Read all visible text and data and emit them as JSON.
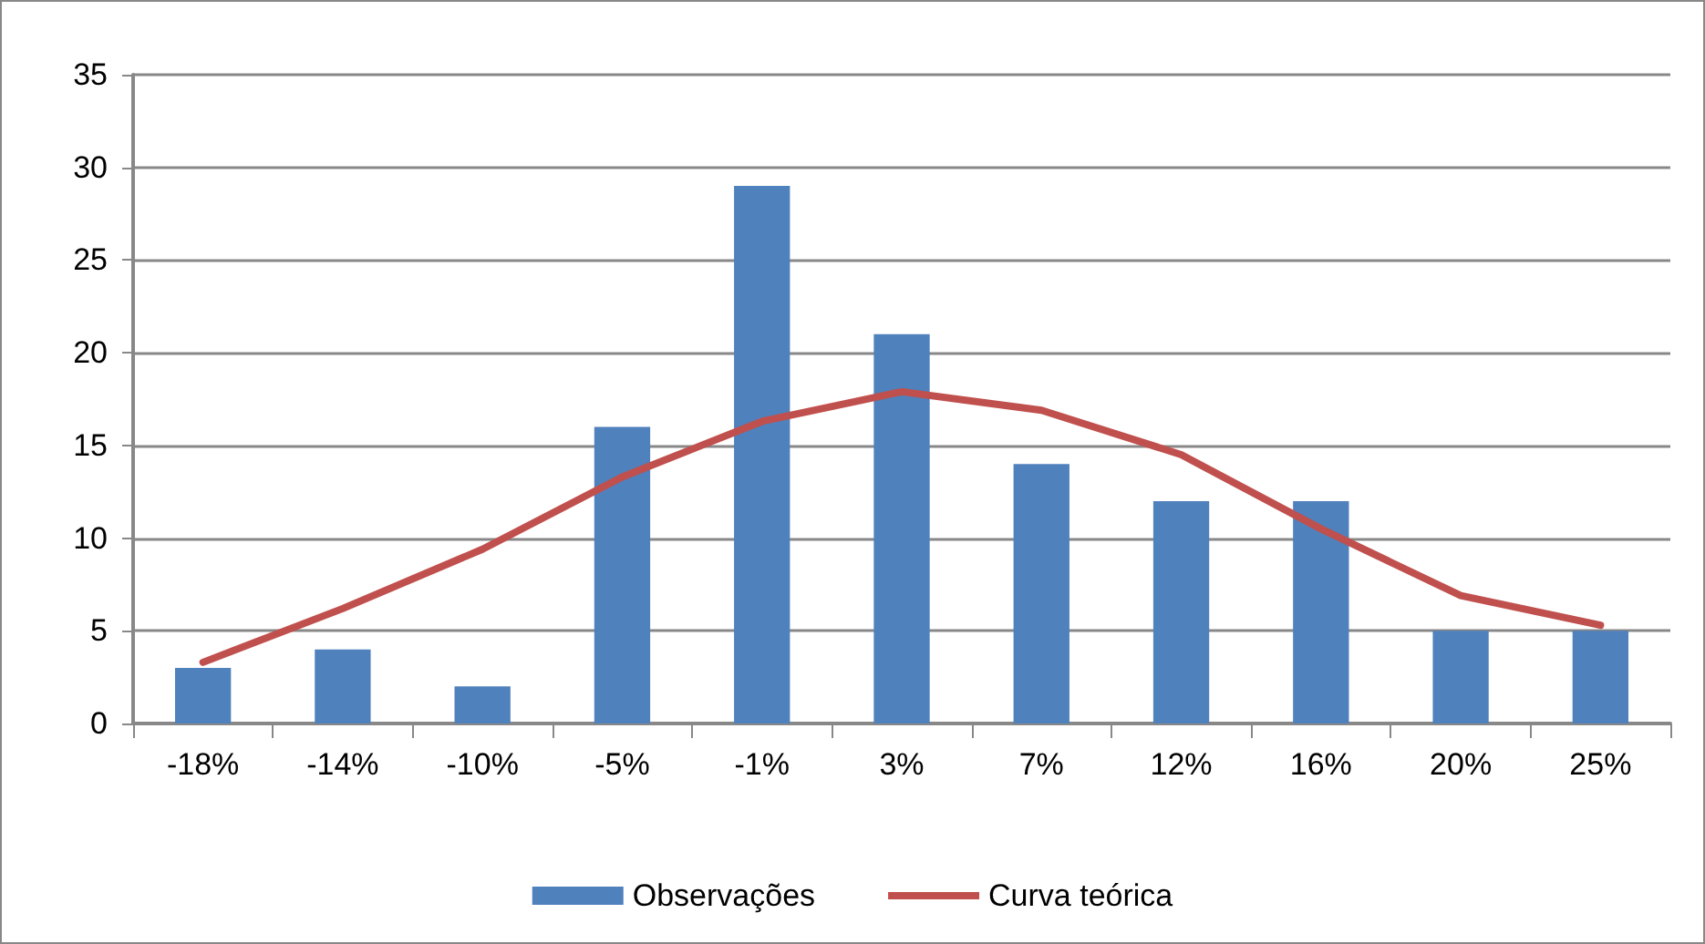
{
  "chart_data": {
    "type": "bar",
    "categories": [
      "-18%",
      "-14%",
      "-10%",
      "-5%",
      "-1%",
      "3%",
      "7%",
      "12%",
      "16%",
      "20%",
      "25%"
    ],
    "series": [
      {
        "name": "Observações",
        "color": "#4f81bd",
        "values": [
          3,
          4,
          2,
          16,
          29,
          21,
          14,
          12,
          12,
          5,
          5
        ]
      },
      {
        "name": "Curva teórica",
        "type": "line",
        "color": "#c0504d",
        "values": [
          3.3,
          6.2,
          9.4,
          13.3,
          16.3,
          17.9,
          16.9,
          14.5,
          10.5,
          6.9,
          5.3
        ]
      }
    ],
    "ylim": [
      0,
      35
    ],
    "yticks": [
      0,
      5,
      10,
      15,
      20,
      25,
      30,
      35
    ],
    "grid": "y",
    "legend": "bottom",
    "marker": "none"
  }
}
